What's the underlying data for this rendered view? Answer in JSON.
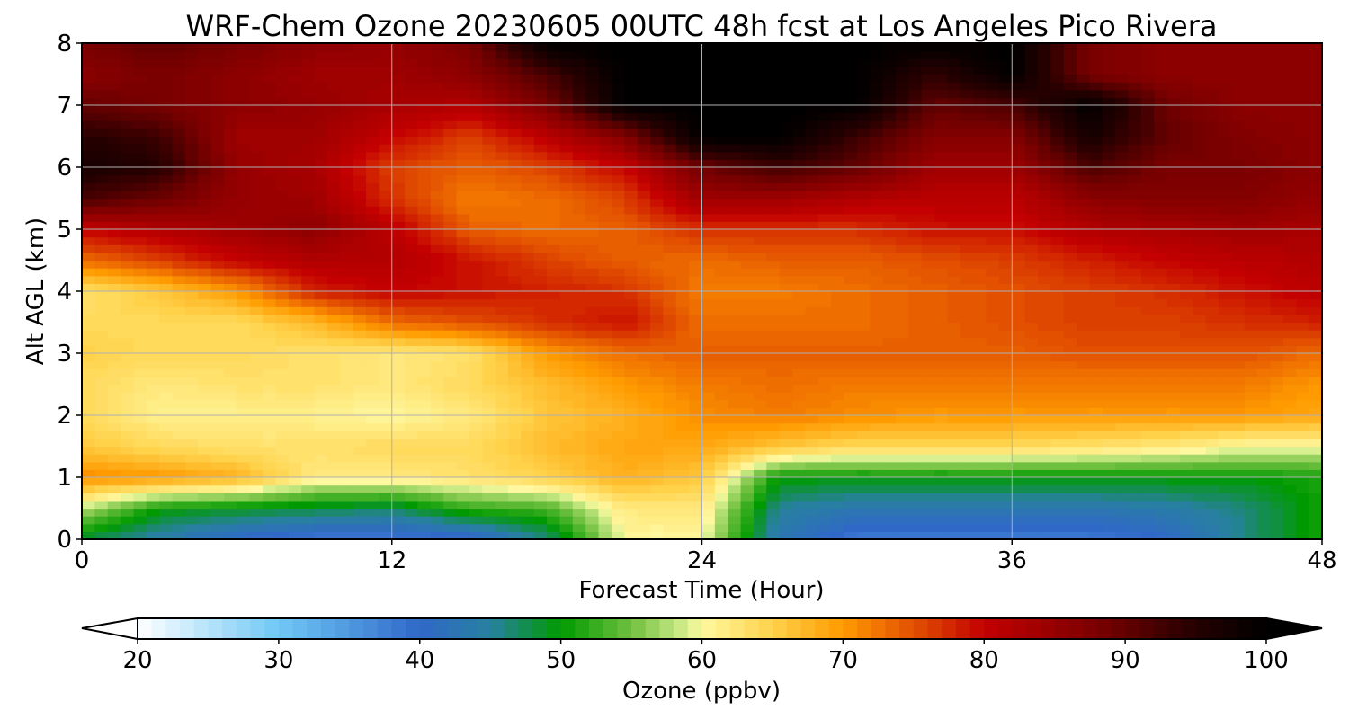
{
  "chart_data": {
    "type": "heatmap",
    "title": "WRF-Chem Ozone  20230605 00UTC 48h fcst at Los Angeles Pico Rivera",
    "xlabel": "Forecast Time (Hour)",
    "ylabel": "Alt AGL (km)",
    "xlim": [
      0,
      48
    ],
    "ylim": [
      0,
      8
    ],
    "xticks": [
      "0",
      "12",
      "24",
      "36",
      "48"
    ],
    "yticks": [
      "0",
      "1",
      "2",
      "3",
      "4",
      "5",
      "6",
      "7",
      "8"
    ],
    "grid": true,
    "x": [
      0,
      3,
      6,
      9,
      12,
      15,
      18,
      21,
      24,
      27,
      30,
      33,
      36,
      39,
      42,
      45,
      48
    ],
    "y": [
      0,
      0.5,
      1,
      1.5,
      2,
      2.5,
      3,
      3.5,
      4,
      4.5,
      5,
      5.5,
      6,
      6.5,
      7,
      7.5,
      8
    ],
    "z_rows": [
      [
        48,
        44,
        40,
        38,
        38,
        39,
        46,
        60,
        60,
        43,
        38,
        38,
        38,
        38,
        40,
        46,
        51
      ],
      [
        58,
        50,
        49,
        48,
        47,
        52,
        53,
        62,
        62,
        45,
        43,
        43,
        43,
        43,
        44,
        46,
        51
      ],
      [
        71,
        70,
        68,
        62,
        62,
        63,
        65,
        68,
        66,
        50,
        50,
        50,
        50,
        50,
        50,
        50,
        51
      ],
      [
        66,
        64,
        63,
        63,
        64,
        64,
        67,
        69,
        69,
        66,
        64,
        64,
        64,
        63,
        62,
        60,
        60
      ],
      [
        64,
        61,
        61,
        61,
        60,
        62,
        66,
        68,
        71,
        72,
        71,
        70,
        70,
        70,
        70,
        70,
        69
      ],
      [
        64,
        62,
        63,
        63,
        62,
        64,
        67,
        70,
        72,
        73,
        72,
        72,
        72,
        72,
        72,
        72,
        70
      ],
      [
        65,
        64,
        64,
        63,
        62,
        63,
        70,
        73,
        74,
        74,
        74,
        74,
        74,
        75,
        75,
        75,
        73
      ],
      [
        64,
        64,
        64,
        67,
        73,
        75,
        77,
        79,
        73,
        73,
        73,
        74,
        75,
        76,
        76,
        77,
        78
      ],
      [
        63,
        66,
        70,
        78,
        80,
        79,
        78,
        77,
        72,
        72,
        73,
        74,
        75,
        76,
        77,
        79,
        81
      ],
      [
        73,
        76,
        80,
        82,
        82,
        79,
        76,
        74,
        73,
        74,
        74,
        75,
        76,
        78,
        80,
        81,
        82
      ],
      [
        80,
        82,
        84,
        86,
        81,
        74,
        73,
        74,
        77,
        77,
        77,
        79,
        79,
        82,
        83,
        84,
        83
      ],
      [
        92,
        89,
        85,
        84,
        77,
        72,
        73,
        76,
        84,
        84,
        82,
        81,
        81,
        86,
        87,
        87,
        85
      ],
      [
        97,
        95,
        85,
        83,
        76,
        74,
        76,
        80,
        89,
        93,
        90,
        84,
        84,
        92,
        88,
        88,
        86
      ],
      [
        95,
        93,
        84,
        84,
        80,
        76,
        81,
        87,
        100,
        100,
        93,
        87,
        87,
        97,
        90,
        87,
        86
      ],
      [
        90,
        88,
        86,
        85,
        83,
        82,
        88,
        100,
        100,
        100,
        100,
        90,
        92,
        100,
        89,
        86,
        86
      ],
      [
        86,
        88,
        86,
        84,
        84,
        86,
        92,
        100,
        100,
        100,
        100,
        94,
        100,
        88,
        86,
        86,
        86
      ],
      [
        88,
        90,
        88,
        86,
        85,
        88,
        100,
        100,
        100,
        100,
        100,
        100,
        100,
        88,
        86,
        86,
        86
      ]
    ],
    "colorbar": {
      "label": "Ozone  (ppbv)",
      "min": 20,
      "max": 100,
      "extend": "both",
      "ticks": [
        "20",
        "30",
        "40",
        "50",
        "60",
        "70",
        "80",
        "90",
        "100"
      ],
      "stops": [
        {
          "v": 20,
          "c": "#ffffff"
        },
        {
          "v": 30,
          "c": "#6fc8f6"
        },
        {
          "v": 40,
          "c": "#3068c8"
        },
        {
          "v": 45,
          "c": "#2880a0"
        },
        {
          "v": 50,
          "c": "#009a00"
        },
        {
          "v": 55,
          "c": "#70c040"
        },
        {
          "v": 59,
          "c": "#d8f090"
        },
        {
          "v": 60,
          "c": "#fff8a0"
        },
        {
          "v": 65,
          "c": "#ffd24a"
        },
        {
          "v": 70,
          "c": "#ff9a00"
        },
        {
          "v": 75,
          "c": "#e25000"
        },
        {
          "v": 80,
          "c": "#c40000"
        },
        {
          "v": 88,
          "c": "#7a0000"
        },
        {
          "v": 95,
          "c": "#250000"
        },
        {
          "v": 100,
          "c": "#000000"
        }
      ]
    }
  }
}
